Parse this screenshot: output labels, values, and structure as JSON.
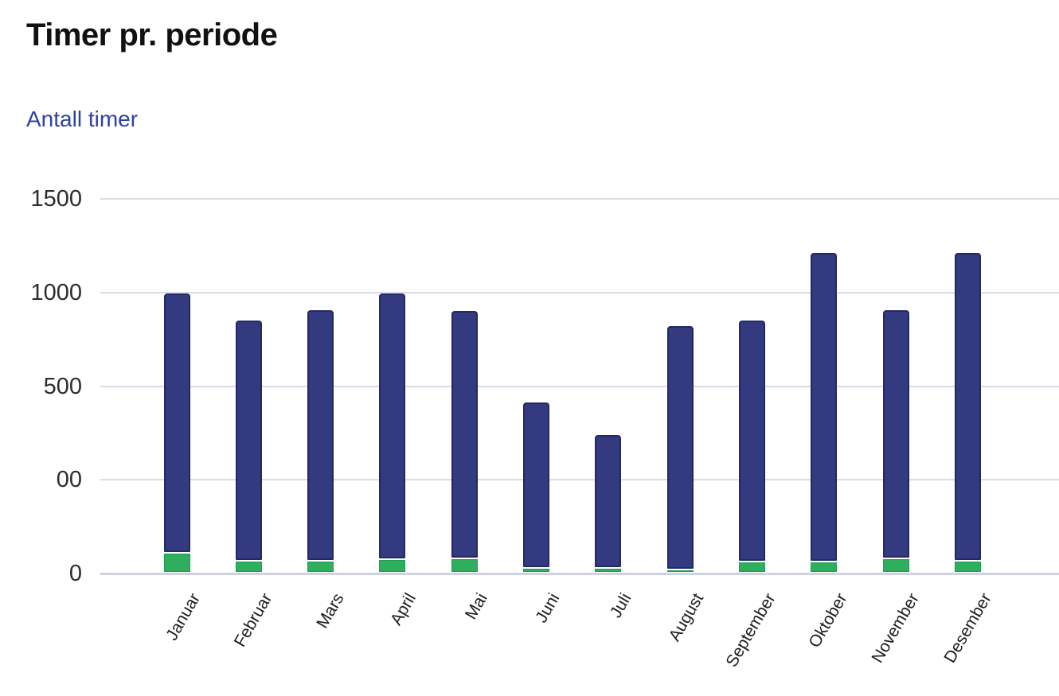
{
  "header": {
    "title": "Timer pr. periode",
    "subtitle": "Antall timer"
  },
  "colors": {
    "background": "#ffffff",
    "title_text": "#111111",
    "subtitle_text": "#2e41a5",
    "axis_tick_text": "#2d2d2d",
    "month_label_text": "#1c1c1c",
    "gridline": "#dadce8",
    "bar_dark_blue_fill": "#333a80",
    "bar_dark_blue_border": "#232864",
    "bar_green_fill": "#2fae5e",
    "bar_green_border": "#1f9d50"
  },
  "chart_data": {
    "type": "bar",
    "stacked": true,
    "title": "Timer pr. periode",
    "ylabel": "Antall timer",
    "xlabel": "",
    "categories": [
      "Januar",
      "Februar",
      "Mars",
      "April",
      "Mai",
      "Juni",
      "Juli",
      "August",
      "September",
      "Oktober",
      "November",
      "Desember"
    ],
    "series": [
      {
        "name": "green-bottom-segment",
        "color": "#2fae5e",
        "values": [
          80,
          48,
          48,
          54,
          57,
          19,
          19,
          14,
          45,
          45,
          57,
          48
        ]
      },
      {
        "name": "dark-blue-top-segment",
        "color": "#333a80",
        "values": [
          1041,
          965,
          1006,
          1067,
          994,
          666,
          535,
          976,
          968,
          1238,
          997,
          1235
        ]
      }
    ],
    "totals": [
      1121,
      1013,
      1054,
      1121,
      1051,
      685,
      554,
      990,
      1013,
      1283,
      1054,
      1283
    ],
    "ylim": [
      0,
      1500
    ],
    "y_ticks": [
      "1500",
      "1000",
      "500",
      "00",
      "0"
    ],
    "grid": true,
    "legend": false,
    "x_label_rotation_deg": -60
  }
}
